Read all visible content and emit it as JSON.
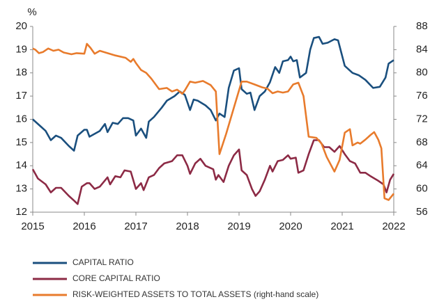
{
  "chart_data": {
    "type": "line",
    "ylabel": "%",
    "xlim": [
      2015,
      2022
    ],
    "xticks": [
      2015,
      2016,
      2017,
      2018,
      2019,
      2020,
      2021,
      2022
    ],
    "ylim": [
      12,
      20
    ],
    "yticks": [
      12,
      13,
      14,
      15,
      16,
      17,
      18,
      19,
      20
    ],
    "y2lim": [
      56,
      88
    ],
    "y2ticks": [
      56,
      60,
      64,
      68,
      72,
      76,
      80,
      84,
      88
    ],
    "series": [
      {
        "name": "CAPITAL RATIO",
        "color": "#1a4f7e",
        "x": [
          2015.0,
          2015.15,
          2015.25,
          2015.35,
          2015.45,
          2015.55,
          2015.7,
          2015.8,
          2015.87,
          2016.0,
          2016.05,
          2016.1,
          2016.3,
          2016.4,
          2016.45,
          2016.55,
          2016.65,
          2016.75,
          2016.85,
          2016.95,
          2017.0,
          2017.1,
          2017.2,
          2017.25,
          2017.35,
          2017.5,
          2017.6,
          2017.75,
          2017.85,
          2017.95,
          2018.05,
          2018.12,
          2018.2,
          2018.35,
          2018.45,
          2018.55,
          2018.62,
          2018.72,
          2018.8,
          2018.9,
          2019.0,
          2019.05,
          2019.15,
          2019.22,
          2019.3,
          2019.4,
          2019.5,
          2019.6,
          2019.7,
          2019.78,
          2019.85,
          2019.95,
          2020.0,
          2020.05,
          2020.12,
          2020.18,
          2020.3,
          2020.38,
          2020.45,
          2020.55,
          2020.62,
          2020.72,
          2020.85,
          2020.92,
          2021.05,
          2021.2,
          2021.32,
          2021.45,
          2021.6,
          2021.73,
          2021.84,
          2021.9,
          2022.0
        ],
        "values": [
          16.0,
          15.7,
          15.5,
          15.1,
          15.3,
          15.2,
          14.85,
          14.65,
          15.3,
          15.55,
          15.55,
          15.25,
          15.5,
          15.8,
          15.45,
          15.85,
          15.8,
          16.05,
          16.05,
          15.95,
          15.3,
          15.6,
          15.2,
          15.9,
          16.1,
          16.5,
          16.8,
          17.0,
          17.2,
          17.05,
          16.4,
          16.85,
          16.8,
          16.6,
          16.4,
          15.95,
          16.25,
          16.1,
          17.35,
          18.1,
          18.2,
          17.3,
          17.1,
          17.15,
          16.4,
          17.0,
          17.2,
          17.6,
          18.25,
          18.0,
          18.5,
          18.55,
          18.7,
          18.5,
          18.55,
          17.8,
          18.0,
          19.0,
          19.5,
          19.55,
          19.25,
          19.3,
          19.45,
          19.4,
          18.3,
          18.0,
          17.9,
          17.7,
          17.35,
          17.4,
          17.8,
          18.4,
          18.55
        ]
      },
      {
        "name": "CORE CAPITAL RATIO",
        "color": "#8c2a45",
        "x": [
          2015.0,
          2015.1,
          2015.25,
          2015.35,
          2015.45,
          2015.55,
          2015.7,
          2015.8,
          2015.87,
          2015.95,
          2016.05,
          2016.1,
          2016.2,
          2016.3,
          2016.45,
          2016.5,
          2016.6,
          2016.7,
          2016.78,
          2016.9,
          2017.0,
          2017.1,
          2017.15,
          2017.25,
          2017.35,
          2017.45,
          2017.55,
          2017.7,
          2017.8,
          2017.9,
          2018.0,
          2018.05,
          2018.15,
          2018.25,
          2018.35,
          2018.5,
          2018.55,
          2018.6,
          2018.7,
          2018.8,
          2018.9,
          2019.0,
          2019.05,
          2019.15,
          2019.25,
          2019.32,
          2019.4,
          2019.5,
          2019.6,
          2019.65,
          2019.75,
          2019.85,
          2019.95,
          2020.0,
          2020.1,
          2020.15,
          2020.25,
          2020.35,
          2020.45,
          2020.55,
          2020.65,
          2020.75,
          2020.85,
          2020.95,
          2021.05,
          2021.15,
          2021.25,
          2021.35,
          2021.45,
          2021.55,
          2021.7,
          2021.8,
          2021.86,
          2021.93,
          2022.0
        ],
        "values": [
          13.85,
          13.45,
          13.2,
          12.85,
          13.05,
          13.05,
          12.7,
          12.5,
          12.35,
          13.1,
          13.25,
          13.25,
          13.0,
          13.1,
          13.5,
          13.2,
          13.55,
          13.5,
          13.8,
          13.75,
          13.0,
          13.25,
          12.95,
          13.5,
          13.6,
          13.9,
          14.1,
          14.2,
          14.45,
          14.45,
          14.0,
          13.65,
          14.1,
          14.3,
          14.0,
          13.85,
          13.4,
          13.6,
          13.3,
          14.0,
          14.45,
          14.7,
          13.8,
          13.6,
          13.0,
          12.7,
          12.9,
          13.4,
          14.0,
          13.75,
          14.2,
          14.25,
          14.45,
          14.3,
          14.35,
          13.7,
          13.8,
          14.5,
          15.1,
          15.1,
          14.8,
          14.8,
          14.6,
          14.85,
          14.5,
          14.2,
          14.1,
          13.7,
          13.7,
          13.55,
          13.35,
          13.2,
          12.85,
          13.4,
          13.65
        ]
      },
      {
        "name": "RISK-WEIGHTED ASSETS TO TOTAL ASSETS (right-hand scale)",
        "color": "#e87b2c",
        "axis": "y2",
        "x": [
          2015.0,
          2015.05,
          2015.12,
          2015.2,
          2015.3,
          2015.4,
          2015.5,
          2015.6,
          2015.75,
          2015.85,
          2016.0,
          2016.05,
          2016.12,
          2016.2,
          2016.3,
          2016.45,
          2016.6,
          2016.8,
          2016.9,
          2016.95,
          2017.0,
          2017.1,
          2017.2,
          2017.3,
          2017.45,
          2017.6,
          2017.7,
          2017.8,
          2017.9,
          2017.95,
          2018.05,
          2018.15,
          2018.3,
          2018.45,
          2018.55,
          2018.62,
          2018.75,
          2018.9,
          2019.05,
          2019.15,
          2019.3,
          2019.45,
          2019.55,
          2019.65,
          2019.75,
          2019.85,
          2019.95,
          2020.05,
          2020.15,
          2020.25,
          2020.35,
          2020.5,
          2020.6,
          2020.7,
          2020.85,
          2020.95,
          2021.05,
          2021.15,
          2021.2,
          2021.3,
          2021.35,
          2021.45,
          2021.55,
          2021.62,
          2021.7,
          2021.76,
          2021.82,
          2021.9,
          2022.0
        ],
        "values": [
          84.2,
          84.0,
          83.4,
          83.6,
          84.2,
          83.8,
          84.0,
          83.5,
          83.2,
          83.4,
          83.3,
          85.0,
          84.3,
          83.3,
          83.8,
          83.4,
          83.0,
          82.6,
          81.9,
          82.4,
          81.7,
          80.5,
          80.0,
          79.0,
          77.2,
          77.4,
          76.8,
          77.1,
          76.4,
          77.0,
          78.5,
          78.3,
          78.6,
          77.9,
          76.8,
          66.0,
          69.5,
          74.0,
          78.5,
          78.5,
          78.0,
          77.5,
          77.3,
          76.5,
          76.8,
          76.6,
          76.8,
          78.0,
          78.3,
          76.0,
          69.0,
          68.8,
          67.8,
          65.5,
          63.0,
          65.0,
          69.7,
          70.3,
          67.5,
          68.0,
          67.8,
          68.5,
          69.3,
          69.8,
          68.5,
          67.0,
          58.4,
          58.1,
          59.2
        ]
      }
    ]
  }
}
